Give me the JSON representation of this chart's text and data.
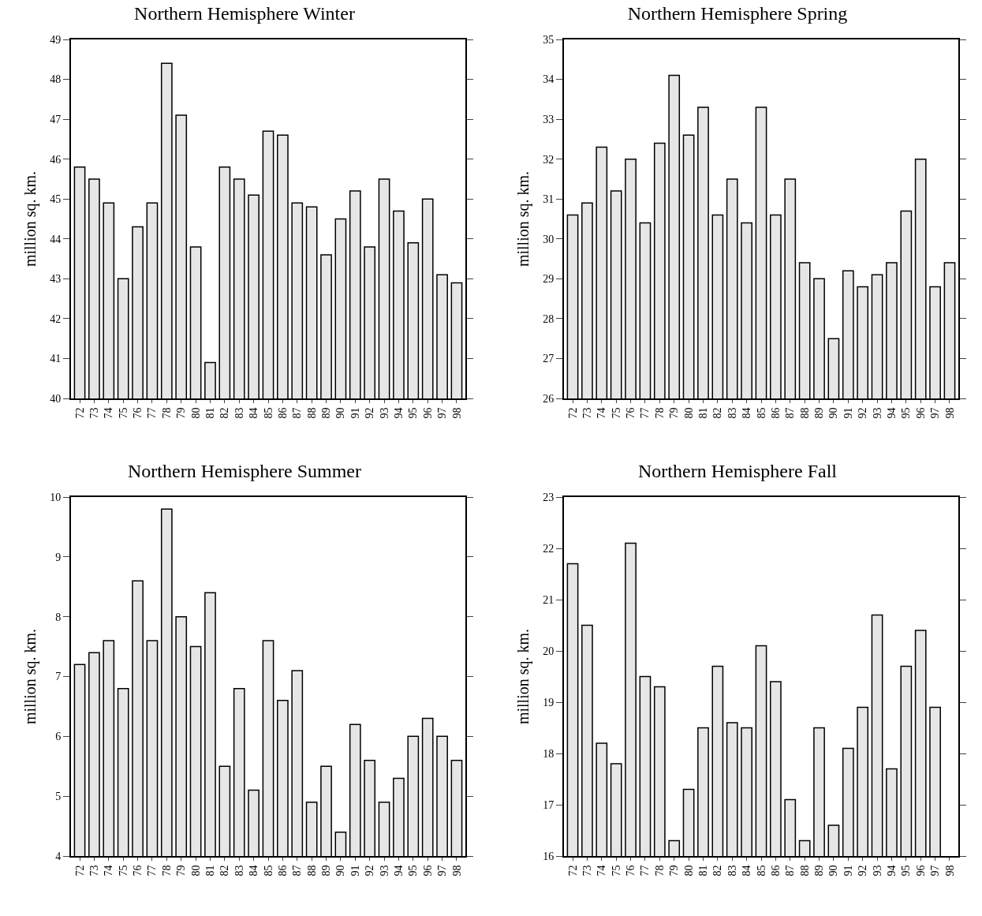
{
  "chart_data": [
    {
      "type": "bar",
      "title": "Northern Hemisphere Winter",
      "ylabel": "million sq. km.",
      "categories": [
        "72",
        "73",
        "74",
        "75",
        "76",
        "77",
        "78",
        "79",
        "80",
        "81",
        "82",
        "83",
        "84",
        "85",
        "86",
        "87",
        "88",
        "89",
        "90",
        "91",
        "92",
        "93",
        "94",
        "95",
        "96",
        "97",
        "98"
      ],
      "values": [
        45.8,
        45.5,
        44.9,
        43.0,
        44.3,
        44.9,
        48.4,
        47.1,
        43.8,
        40.9,
        45.8,
        45.5,
        45.1,
        46.7,
        46.6,
        44.9,
        44.8,
        43.6,
        44.5,
        45.2,
        43.8,
        45.5,
        44.7,
        43.9,
        45.0,
        43.1,
        42.9
      ],
      "color": "#e6e6e6",
      "ylim": [
        40,
        49
      ],
      "yticks": [
        40,
        41,
        42,
        43,
        44,
        45,
        46,
        47,
        48,
        49
      ],
      "grid": false
    },
    {
      "type": "bar",
      "title": "Northern Hemisphere Spring",
      "ylabel": "million sq. km.",
      "categories": [
        "72",
        "73",
        "74",
        "75",
        "76",
        "77",
        "78",
        "79",
        "80",
        "81",
        "82",
        "83",
        "84",
        "85",
        "86",
        "87",
        "88",
        "89",
        "90",
        "91",
        "92",
        "93",
        "94",
        "95",
        "96",
        "97",
        "98"
      ],
      "values": [
        30.6,
        30.9,
        32.3,
        31.2,
        32.0,
        30.4,
        32.4,
        34.1,
        32.6,
        33.3,
        30.6,
        31.5,
        30.4,
        33.3,
        30.6,
        31.5,
        29.4,
        29.0,
        27.5,
        29.2,
        28.8,
        29.1,
        29.4,
        30.7,
        32.0,
        28.8,
        29.4
      ],
      "color": "#e6e6e6",
      "ylim": [
        26,
        35
      ],
      "yticks": [
        26,
        27,
        28,
        29,
        30,
        31,
        32,
        33,
        34,
        35
      ],
      "grid": false
    },
    {
      "type": "bar",
      "title": "Northern Hemisphere Summer",
      "ylabel": "million sq. km.",
      "categories": [
        "72",
        "73",
        "74",
        "75",
        "76",
        "77",
        "78",
        "79",
        "80",
        "81",
        "82",
        "83",
        "84",
        "85",
        "86",
        "87",
        "88",
        "89",
        "90",
        "91",
        "92",
        "93",
        "94",
        "95",
        "96",
        "97",
        "98"
      ],
      "values": [
        7.2,
        7.4,
        7.6,
        6.8,
        8.6,
        7.6,
        9.8,
        8.0,
        7.5,
        8.4,
        5.5,
        6.8,
        5.1,
        7.6,
        6.6,
        7.1,
        4.9,
        5.5,
        4.4,
        6.2,
        5.6,
        4.9,
        5.3,
        6.0,
        6.3,
        6.0,
        5.6
      ],
      "color": "#e6e6e6",
      "ylim": [
        4,
        10
      ],
      "yticks": [
        4,
        5,
        6,
        7,
        8,
        9,
        10
      ],
      "grid": false
    },
    {
      "type": "bar",
      "title": "Northern Hemisphere Fall",
      "ylabel": "million sq. km.",
      "categories": [
        "72",
        "73",
        "74",
        "75",
        "76",
        "77",
        "78",
        "79",
        "80",
        "81",
        "82",
        "83",
        "84",
        "85",
        "86",
        "87",
        "88",
        "89",
        "90",
        "91",
        "92",
        "93",
        "94",
        "95",
        "96",
        "97",
        "98"
      ],
      "values": [
        21.7,
        20.5,
        18.2,
        17.8,
        22.1,
        19.5,
        19.3,
        16.3,
        17.3,
        18.5,
        19.7,
        18.6,
        18.5,
        20.1,
        19.4,
        17.1,
        16.3,
        18.5,
        16.6,
        18.1,
        18.9,
        20.7,
        17.7,
        19.7,
        20.4,
        18.9,
        null
      ],
      "color": "#e6e6e6",
      "ylim": [
        16,
        23
      ],
      "yticks": [
        16,
        17,
        18,
        19,
        20,
        21,
        22,
        23
      ],
      "grid": false
    }
  ]
}
